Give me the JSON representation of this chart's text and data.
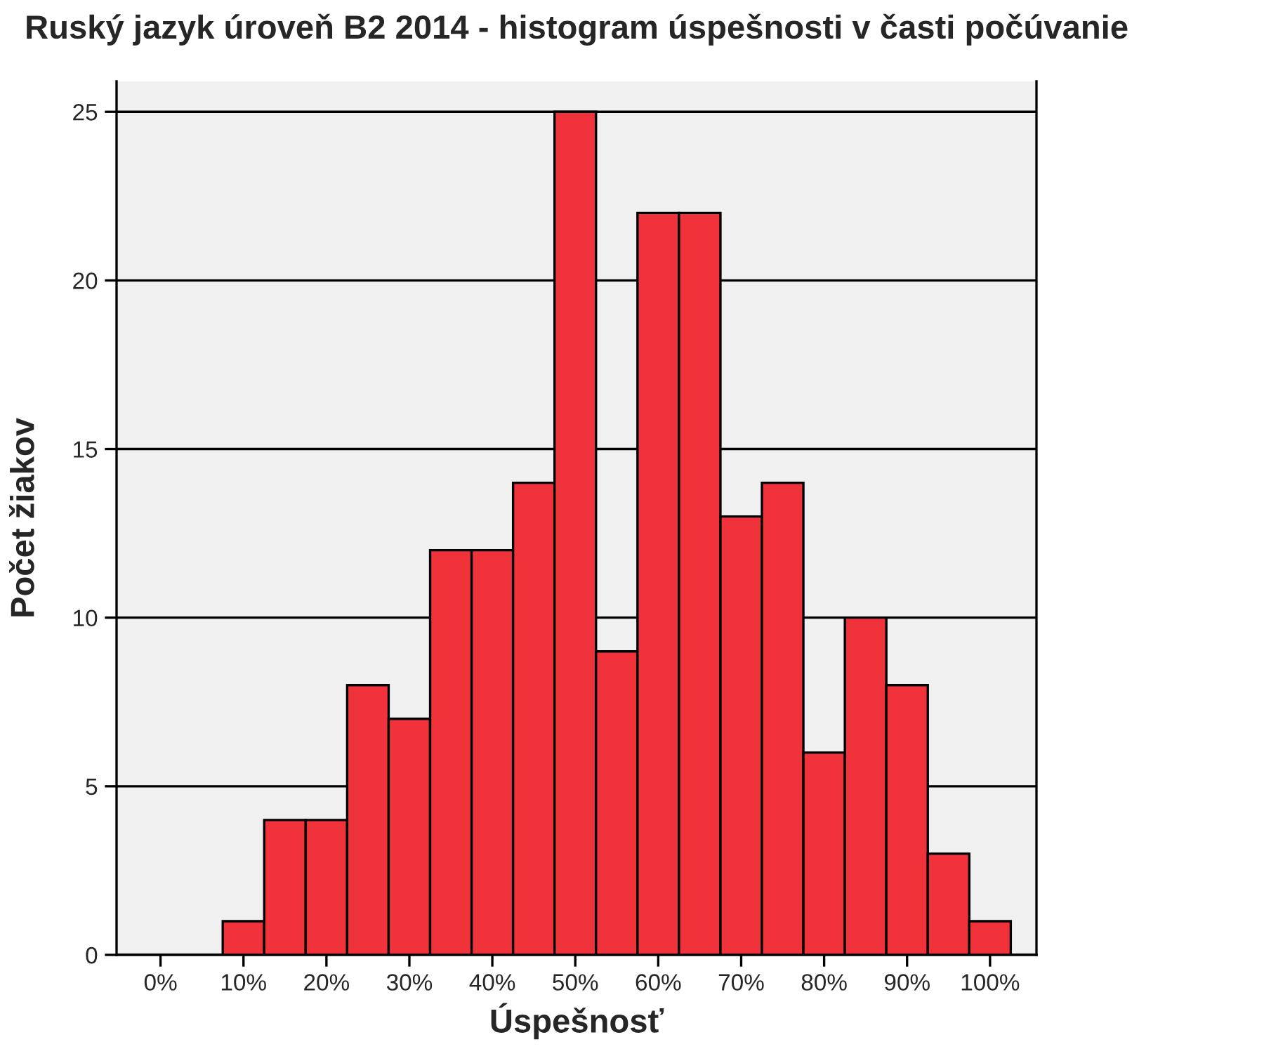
{
  "chart_data": {
    "type": "histogram",
    "title": "Ruský jazyk úroveň B2 2014 - histogram úspešnosti v časti počúvanie",
    "xlabel": "Úspešnosť",
    "ylabel": "Počet žiakov",
    "bins": [
      7.5,
      12.5,
      17.5,
      22.5,
      27.5,
      32.5,
      37.5,
      42.5,
      47.5,
      52.5,
      57.5,
      62.5,
      67.5,
      72.5,
      77.5,
      82.5,
      87.5,
      92.5,
      97.5,
      102.5
    ],
    "values": [
      1,
      4,
      4,
      8,
      7,
      12,
      12,
      14,
      25,
      9,
      22,
      22,
      13,
      14,
      6,
      10,
      8,
      3,
      1
    ],
    "color": "#f0323a",
    "xlim": [
      -5.3,
      105.6
    ],
    "xticks": [
      {
        "value": 0,
        "label": "0%"
      },
      {
        "value": 10,
        "label": "10%"
      },
      {
        "value": 20,
        "label": "20%"
      },
      {
        "value": 30,
        "label": "30%"
      },
      {
        "value": 40,
        "label": "40%"
      },
      {
        "value": 50,
        "label": "50%"
      },
      {
        "value": 60,
        "label": "60%"
      },
      {
        "value": 70,
        "label": "70%"
      },
      {
        "value": 80,
        "label": "80%"
      },
      {
        "value": 90,
        "label": "90%"
      },
      {
        "value": 100,
        "label": "100%"
      }
    ],
    "ylim": [
      0,
      25.9
    ],
    "yticks": [
      0,
      5,
      10,
      15,
      20,
      25
    ],
    "grid": "y"
  }
}
